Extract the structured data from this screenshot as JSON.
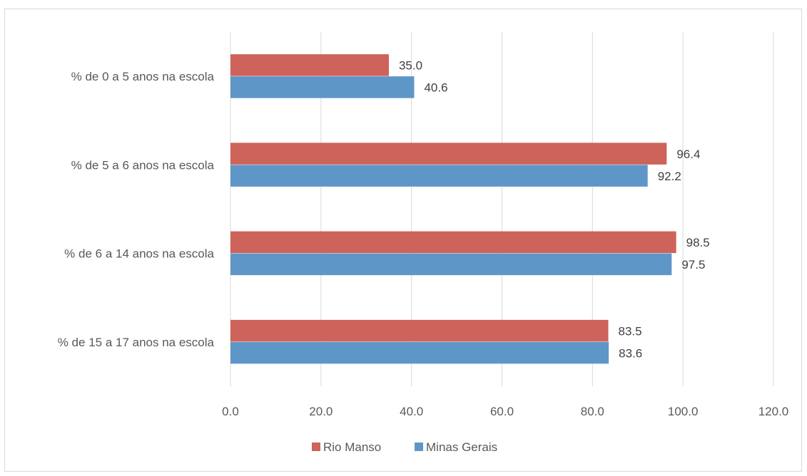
{
  "chart_data": {
    "type": "bar",
    "orientation": "horizontal",
    "categories": [
      "% de 0 a 5 anos na escola",
      "% de 5 a 6 anos na escola",
      "% de 6 a 14 anos na escola",
      "% de 15 a 17 anos na escola"
    ],
    "series": [
      {
        "name": "Rio Manso",
        "color": "#cd635a",
        "values": [
          35.0,
          96.4,
          98.5,
          83.5
        ]
      },
      {
        "name": "Minas Gerais",
        "color": "#5f96c8",
        "values": [
          40.6,
          92.2,
          97.5,
          83.6
        ]
      }
    ],
    "xlim": [
      0,
      120
    ],
    "xticks": [
      "0.0",
      "20.0",
      "40.0",
      "60.0",
      "80.0",
      "100.0",
      "120.0"
    ],
    "tick_values": [
      0,
      20,
      40,
      60,
      80,
      100,
      120
    ],
    "grid": true,
    "legend_position": "bottom",
    "title": "",
    "xlabel": "",
    "ylabel": ""
  }
}
